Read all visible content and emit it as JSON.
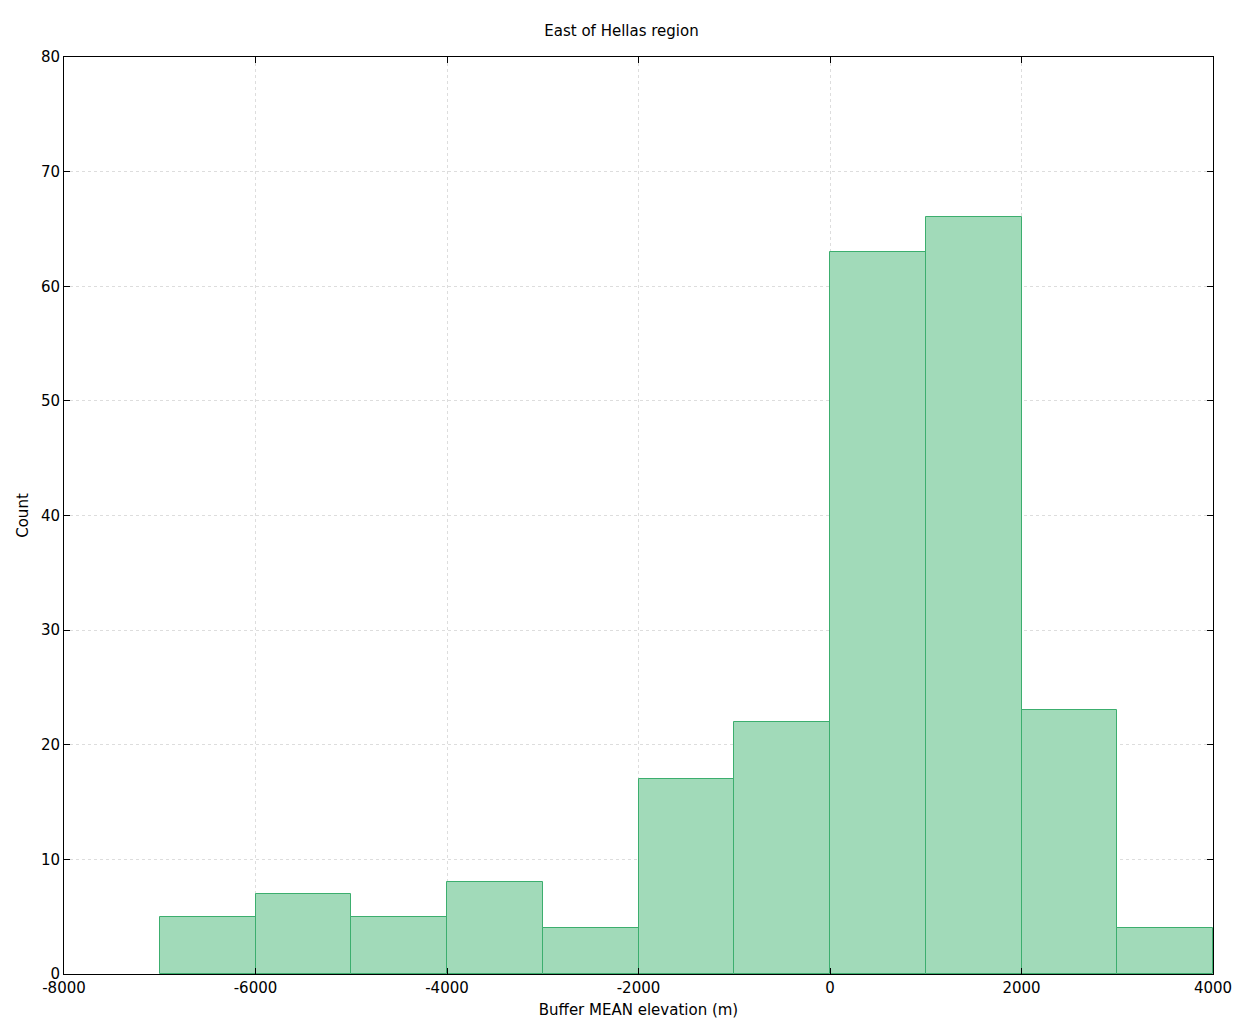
{
  "chart_data": {
    "type": "histogram",
    "title": "East of Hellas region",
    "x_label": "Buffer MEAN elevation (m)",
    "y_label": "Count",
    "bins": [
      -7000,
      -6000,
      -5000,
      -4000,
      -3000,
      -2000,
      -1000,
      0,
      1000,
      2000,
      3000,
      4000
    ],
    "counts": [
      5,
      7,
      5,
      8,
      4,
      17,
      22,
      63,
      66,
      23,
      4
    ],
    "color": "#a1dab9",
    "xlim": [
      -8000,
      4000
    ],
    "xticks": [
      -8000,
      -6000,
      -4000,
      -2000,
      0,
      2000,
      4000
    ],
    "ylim": [
      0,
      80
    ],
    "yticks": [
      0,
      10,
      20,
      30,
      40,
      50,
      60,
      70,
      80
    ],
    "grid": true
  }
}
